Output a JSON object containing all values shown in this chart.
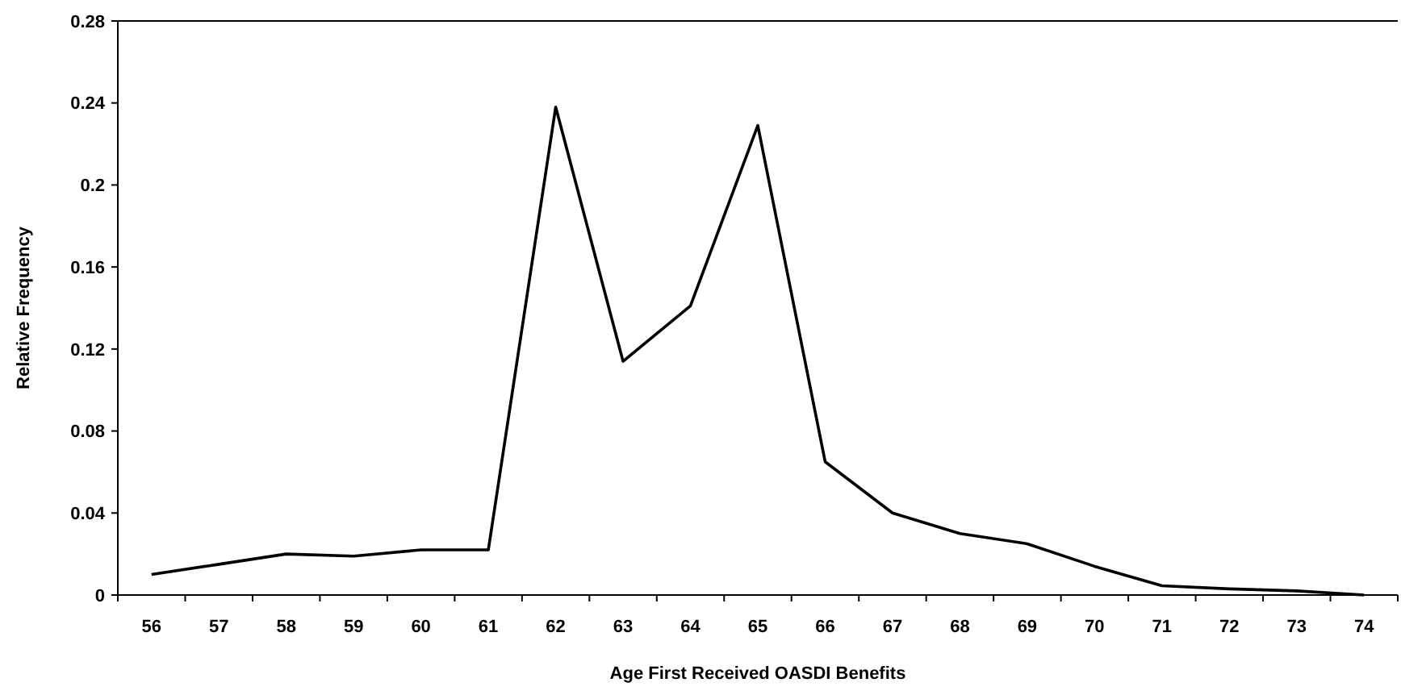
{
  "chart_data": {
    "type": "line",
    "xlabel": "Age First Received OASDI Benefits",
    "ylabel": "Relative Frequency",
    "categories": [
      "56",
      "57",
      "58",
      "59",
      "60",
      "61",
      "62",
      "63",
      "64",
      "65",
      "66",
      "67",
      "68",
      "69",
      "70",
      "71",
      "72",
      "73",
      "74"
    ],
    "series": [
      {
        "color": "#000000",
        "values": [
          0.01,
          0.015,
          0.02,
          0.019,
          0.022,
          0.022,
          0.238,
          0.114,
          0.141,
          0.229,
          0.065,
          0.04,
          0.03,
          0.025,
          0.014,
          0.0045,
          0.003,
          0.002,
          0
        ]
      }
    ],
    "ylim": [
      0,
      0.28
    ],
    "yticks": [
      0,
      0.04,
      0.08,
      0.12,
      0.16,
      0.2,
      0.24,
      0.28
    ],
    "grid": false,
    "marker": "none",
    "line_style": "solid"
  }
}
